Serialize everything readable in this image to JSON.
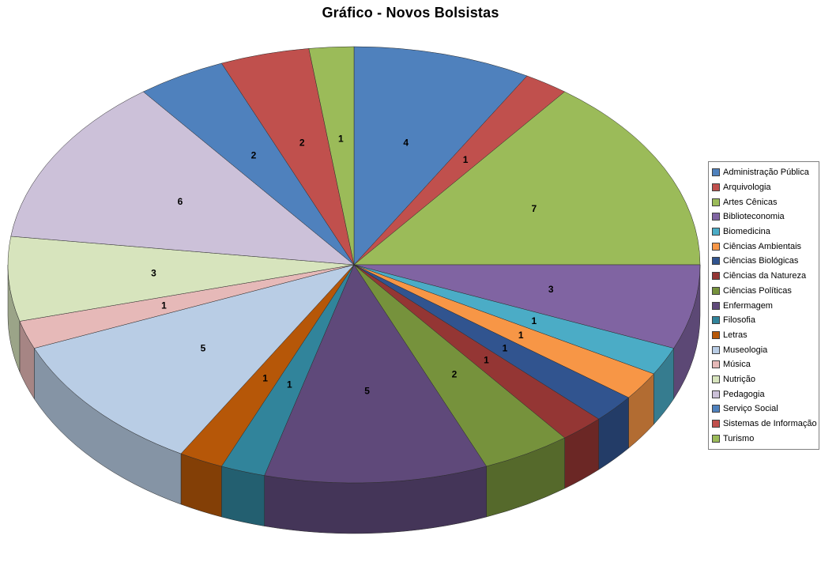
{
  "chart_data": {
    "type": "pie",
    "style": "3d",
    "title": "Gráfico - Novos Bolsistas",
    "legend_position": "right",
    "labels_shown": true,
    "total": 48,
    "start_angle_deg": 0,
    "direction": "clockwise",
    "categories": [
      "Administração Pública",
      "Arquivologia",
      "Artes Cênicas",
      "Biblioteconomia",
      "Biomedicina",
      "Ciências Ambientais",
      "Ciências Biológicas",
      "Ciências da Natureza",
      "Ciências Políticas",
      "Enfermagem",
      "Filosofia",
      "Letras",
      "Museologia",
      "Música",
      "Nutrição",
      "Pedagogia",
      "Serviço Social",
      "Sistemas de Informação",
      "Turismo"
    ],
    "values": [
      4,
      1,
      7,
      3,
      1,
      1,
      1,
      1,
      2,
      5,
      1,
      1,
      5,
      1,
      3,
      6,
      2,
      2,
      1
    ],
    "colors": [
      "#4F81BD",
      "#C0504D",
      "#9BBB59",
      "#8064A2",
      "#4BACC6",
      "#F79646",
      "#31548F",
      "#943634",
      "#76923C",
      "#5F497A",
      "#31849B",
      "#B65708",
      "#B9CDE5",
      "#E6B9B8",
      "#D7E4BD",
      "#CCC1D9",
      "#4F81BD",
      "#C0504D",
      "#9BBB59"
    ]
  }
}
